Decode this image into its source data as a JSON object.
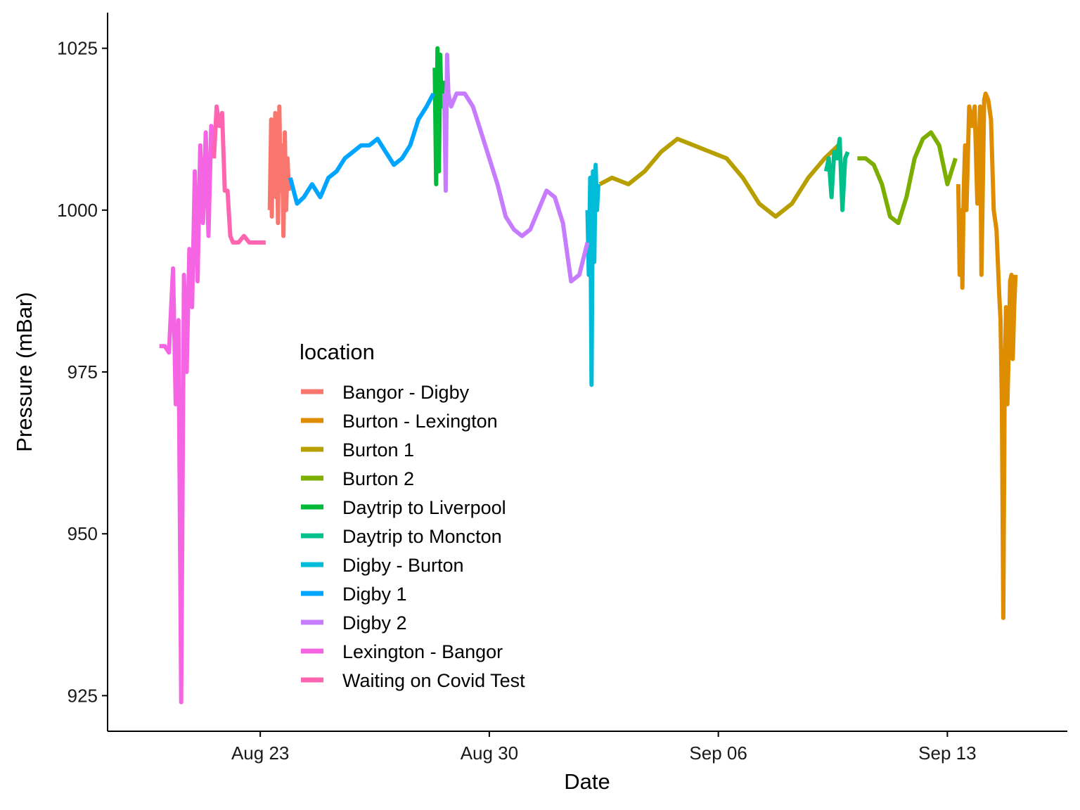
{
  "chart_data": {
    "type": "line",
    "xlabel": "Date",
    "ylabel": "Pressure (mBar)",
    "ylim": [
      919.5,
      1030.5
    ],
    "xlim": [
      "2020-08-18T08:00",
      "2020-09-16T16:00"
    ],
    "x_ticks": [
      {
        "date": "2020-08-23",
        "label": "Aug 23"
      },
      {
        "date": "2020-08-30",
        "label": "Aug 30"
      },
      {
        "date": "2020-09-06",
        "label": "Sep 06"
      },
      {
        "date": "2020-09-13",
        "label": "Sep 13"
      }
    ],
    "y_ticks": [
      925,
      950,
      975,
      1000,
      1025
    ],
    "grid": false,
    "legend": {
      "title": "location",
      "position": "inside-center-left"
    },
    "series": [
      {
        "name": "Bangor - Digby",
        "color": "#F8766D",
        "x": [
          "2020-08-23T07:00",
          "2020-08-23T08:00",
          "2020-08-23T08:30",
          "2020-08-23T09:00",
          "2020-08-23T10:00",
          "2020-08-23T11:00",
          "2020-08-23T11:30",
          "2020-08-23T12:00",
          "2020-08-23T13:00",
          "2020-08-23T14:00",
          "2020-08-23T15:00",
          "2020-08-23T16:00",
          "2020-08-23T17:00",
          "2020-08-23T18:00",
          "2020-08-23T19:00",
          "2020-08-23T20:00",
          "2020-08-23T21:00"
        ],
        "y": [
          1000,
          1014,
          999,
          1012,
          1004,
          1015,
          1002,
          1013,
          998,
          1016,
          1003,
          1010,
          996,
          1012,
          1000,
          1008,
          1003
        ]
      },
      {
        "name": "Burton - Lexington",
        "color": "#DE8C00",
        "x": [
          "2020-09-13T08:00",
          "2020-09-13T09:00",
          "2020-09-13T10:00",
          "2020-09-13T11:00",
          "2020-09-13T12:00",
          "2020-09-13T13:00",
          "2020-09-13T14:00",
          "2020-09-13T16:00",
          "2020-09-13T18:00",
          "2020-09-13T20:00",
          "2020-09-13T22:00",
          "2020-09-14T00:00",
          "2020-09-14T01:00",
          "2020-09-14T03:00",
          "2020-09-14T04:00",
          "2020-09-14T06:00",
          "2020-09-14T08:00",
          "2020-09-14T10:00",
          "2020-09-14T12:00",
          "2020-09-14T14:00",
          "2020-09-14T15:00",
          "2020-09-14T16:00",
          "2020-09-14T17:00",
          "2020-09-14T18:00",
          "2020-09-14T19:00",
          "2020-09-14T20:00",
          "2020-09-14T21:00",
          "2020-09-14T22:00",
          "2020-09-14T23:00",
          "2020-09-15T00:00",
          "2020-09-15T01:00",
          "2020-09-15T02:00"
        ],
        "y": [
          1004,
          990,
          1000,
          988,
          1003,
          1010,
          1000,
          1016,
          1013,
          1016,
          1001,
          1016,
          990,
          1017,
          1018,
          1017,
          1014,
          1000,
          997,
          987,
          983,
          970,
          937,
          972,
          985,
          970,
          978,
          989,
          990,
          977,
          985,
          990
        ]
      },
      {
        "name": "Burton 1",
        "color": "#B79F00",
        "x": [
          "2020-09-02T09:00",
          "2020-09-02T18:00",
          "2020-09-03T06:00",
          "2020-09-03T18:00",
          "2020-09-04T06:00",
          "2020-09-04T18:00",
          "2020-09-05T06:00",
          "2020-09-05T18:00",
          "2020-09-06T06:00",
          "2020-09-06T18:00",
          "2020-09-07T06:00",
          "2020-09-07T18:00",
          "2020-09-08T06:00",
          "2020-09-08T18:00",
          "2020-09-09T06:00",
          "2020-09-09T16:00"
        ],
        "y": [
          1004,
          1005,
          1004,
          1006,
          1009,
          1011,
          1010,
          1009,
          1008,
          1005,
          1001,
          999,
          1001,
          1005,
          1008,
          1010
        ]
      },
      {
        "name": "Burton 2",
        "color": "#7CAE00",
        "x": [
          "2020-09-10T06:00",
          "2020-09-10T12:00",
          "2020-09-10T18:00",
          "2020-09-11T00:00",
          "2020-09-11T06:00",
          "2020-09-11T12:00",
          "2020-09-11T18:00",
          "2020-09-12T00:00",
          "2020-09-12T06:00",
          "2020-09-12T12:00",
          "2020-09-12T18:00",
          "2020-09-13T00:00",
          "2020-09-13T06:00"
        ],
        "y": [
          1008,
          1008,
          1007,
          1004,
          999,
          998,
          1002,
          1008,
          1011,
          1012,
          1010,
          1004,
          1008
        ]
      },
      {
        "name": "Daytrip to Liverpool",
        "color": "#00BA38",
        "x": [
          "2020-08-28T08:00",
          "2020-08-28T09:00",
          "2020-08-28T10:00",
          "2020-08-28T11:00",
          "2020-08-28T12:00",
          "2020-08-28T13:00",
          "2020-08-28T14:00"
        ],
        "y": [
          1022,
          1004,
          1025,
          1006,
          1024,
          1016,
          1020
        ]
      },
      {
        "name": "Daytrip to Moncton",
        "color": "#00C08B",
        "x": [
          "2020-09-09T07:00",
          "2020-09-09T09:00",
          "2020-09-09T11:00",
          "2020-09-09T13:00",
          "2020-09-09T15:00",
          "2020-09-09T17:00",
          "2020-09-09T19:00",
          "2020-09-09T21:00",
          "2020-09-09T23:00"
        ],
        "y": [
          1006,
          1008,
          1002,
          1009,
          1008,
          1011,
          1000,
          1008,
          1009
        ]
      },
      {
        "name": "Digby - Burton",
        "color": "#00BCD8",
        "x": [
          "2020-09-02T00:00",
          "2020-09-02T01:00",
          "2020-09-02T02:00",
          "2020-09-02T03:00",
          "2020-09-02T04:00",
          "2020-09-02T05:00",
          "2020-09-02T06:00",
          "2020-09-02T07:00",
          "2020-09-02T08:00"
        ],
        "y": [
          1000,
          990,
          1005,
          973,
          1006,
          992,
          1007,
          1000,
          1004
        ]
      },
      {
        "name": "Digby 1",
        "color": "#00A5FF",
        "x": [
          "2020-08-23T22:00",
          "2020-08-24T03:00",
          "2020-08-24T08:00",
          "2020-08-24T14:00",
          "2020-08-24T20:00",
          "2020-08-25T02:00",
          "2020-08-25T08:00",
          "2020-08-25T14:00",
          "2020-08-25T20:00",
          "2020-08-26T02:00",
          "2020-08-26T08:00",
          "2020-08-26T14:00",
          "2020-08-26T20:00",
          "2020-08-27T02:00",
          "2020-08-27T08:00",
          "2020-08-27T14:00",
          "2020-08-27T20:00",
          "2020-08-28T02:00",
          "2020-08-28T07:00"
        ],
        "y": [
          1005,
          1001,
          1002,
          1004,
          1002,
          1005,
          1006,
          1008,
          1009,
          1010,
          1010,
          1011,
          1009,
          1007,
          1008,
          1010,
          1014,
          1016,
          1018
        ]
      },
      {
        "name": "Digby 2",
        "color": "#C77CFF",
        "x": [
          "2020-08-28T15:00",
          "2020-08-28T16:00",
          "2020-08-28T17:00",
          "2020-08-28T18:00",
          "2020-08-28T20:00",
          "2020-08-29T00:00",
          "2020-08-29T06:00",
          "2020-08-29T12:00",
          "2020-08-29T18:00",
          "2020-08-30T00:00",
          "2020-08-30T06:00",
          "2020-08-30T12:00",
          "2020-08-30T18:00",
          "2020-08-31T00:00",
          "2020-08-31T06:00",
          "2020-08-31T12:00",
          "2020-08-31T18:00",
          "2020-09-01T00:00",
          "2020-09-01T06:00",
          "2020-09-01T12:00",
          "2020-09-01T18:00",
          "2020-09-02T00:00"
        ],
        "y": [
          1018,
          1003,
          1024,
          1018,
          1016,
          1018,
          1018,
          1016,
          1012,
          1008,
          1004,
          999,
          997,
          996,
          997,
          1000,
          1003,
          1002,
          998,
          989,
          990,
          995
        ]
      },
      {
        "name": "Lexington - Bangor",
        "color": "#F564E3",
        "x": [
          "2020-08-19T22:00",
          "2020-08-20T02:00",
          "2020-08-20T05:00",
          "2020-08-20T08:00",
          "2020-08-20T10:00",
          "2020-08-20T12:00",
          "2020-08-20T14:00",
          "2020-08-20T16:00",
          "2020-08-20T18:00",
          "2020-08-20T20:00",
          "2020-08-20T22:00",
          "2020-08-21T00:00",
          "2020-08-21T02:00",
          "2020-08-21T04:00",
          "2020-08-21T06:00",
          "2020-08-21T08:00",
          "2020-08-21T10:00",
          "2020-08-21T12:00",
          "2020-08-21T14:00"
        ],
        "y": [
          979,
          979,
          978,
          991,
          970,
          983,
          924,
          990,
          975,
          994,
          985,
          1006,
          989,
          1010,
          998,
          1012,
          996,
          1013,
          1008
        ]
      },
      {
        "name": "Waiting on Covid Test",
        "color": "#FF64B0",
        "x": [
          "2020-08-21T14:00",
          "2020-08-21T16:00",
          "2020-08-21T18:00",
          "2020-08-21T20:00",
          "2020-08-21T22:00",
          "2020-08-22T00:00",
          "2020-08-22T02:00",
          "2020-08-22T04:00",
          "2020-08-22T08:00",
          "2020-08-22T12:00",
          "2020-08-22T16:00",
          "2020-08-22T20:00",
          "2020-08-23T00:00",
          "2020-08-23T04:00"
        ],
        "y": [
          1008,
          1016,
          1013,
          1015,
          1003,
          1003,
          996,
          995,
          995,
          996,
          995,
          995,
          995,
          995
        ]
      }
    ]
  }
}
